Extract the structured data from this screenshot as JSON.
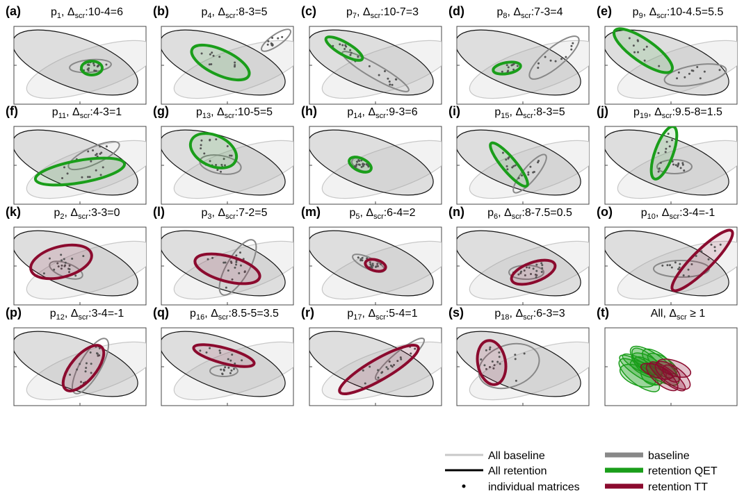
{
  "panels": [
    {
      "letter": "(a)",
      "title": [
        {
          "text": "p"
        },
        {
          "text": "1",
          "sub": true
        },
        {
          "text": ", Δ"
        },
        {
          "text": "scr",
          "sub": true
        },
        {
          "text": ":10-4=6"
        }
      ]
    },
    {
      "letter": "(b)",
      "title": [
        {
          "text": "p"
        },
        {
          "text": "4",
          "sub": true
        },
        {
          "text": ", Δ"
        },
        {
          "text": "scr",
          "sub": true
        },
        {
          "text": ":8-3=5"
        }
      ]
    },
    {
      "letter": "(c)",
      "title": [
        {
          "text": "p"
        },
        {
          "text": "7",
          "sub": true
        },
        {
          "text": ", Δ"
        },
        {
          "text": "scr",
          "sub": true
        },
        {
          "text": ":10-7=3"
        }
      ]
    },
    {
      "letter": "(d)",
      "title": [
        {
          "text": "p"
        },
        {
          "text": "8",
          "sub": true
        },
        {
          "text": ", Δ"
        },
        {
          "text": "scr",
          "sub": true
        },
        {
          "text": ":7-3=4"
        }
      ]
    },
    {
      "letter": "(e)",
      "title": [
        {
          "text": "p"
        },
        {
          "text": "9",
          "sub": true
        },
        {
          "text": ", Δ"
        },
        {
          "text": "scr",
          "sub": true
        },
        {
          "text": ":10-4.5=5.5"
        }
      ]
    },
    {
      "letter": "(f)",
      "title": [
        {
          "text": "p"
        },
        {
          "text": "11",
          "sub": true
        },
        {
          "text": ", Δ"
        },
        {
          "text": "scr",
          "sub": true
        },
        {
          "text": ":4-3=1"
        }
      ]
    },
    {
      "letter": "(g)",
      "title": [
        {
          "text": "p"
        },
        {
          "text": "13",
          "sub": true
        },
        {
          "text": ", Δ"
        },
        {
          "text": "scr",
          "sub": true
        },
        {
          "text": ":10-5=5"
        }
      ]
    },
    {
      "letter": "(h)",
      "title": [
        {
          "text": "p"
        },
        {
          "text": "14",
          "sub": true
        },
        {
          "text": ", Δ"
        },
        {
          "text": "scr",
          "sub": true
        },
        {
          "text": ":9-3=6"
        }
      ]
    },
    {
      "letter": "(i)",
      "title": [
        {
          "text": "p"
        },
        {
          "text": "15",
          "sub": true
        },
        {
          "text": ", Δ"
        },
        {
          "text": "scr",
          "sub": true
        },
        {
          "text": ":8-3=5"
        }
      ]
    },
    {
      "letter": "(j)",
      "title": [
        {
          "text": "p"
        },
        {
          "text": "19",
          "sub": true
        },
        {
          "text": ", Δ"
        },
        {
          "text": "scr",
          "sub": true
        },
        {
          "text": ":9.5-8=1.5"
        }
      ]
    },
    {
      "letter": "(k)",
      "title": [
        {
          "text": "p"
        },
        {
          "text": "2",
          "sub": true
        },
        {
          "text": ", Δ"
        },
        {
          "text": "scr",
          "sub": true
        },
        {
          "text": ":3-3=0"
        }
      ]
    },
    {
      "letter": "(l)",
      "title": [
        {
          "text": "p"
        },
        {
          "text": "3",
          "sub": true
        },
        {
          "text": ", Δ"
        },
        {
          "text": "scr",
          "sub": true
        },
        {
          "text": ":7-2=5"
        }
      ]
    },
    {
      "letter": "(m)",
      "title": [
        {
          "text": "p"
        },
        {
          "text": "5",
          "sub": true
        },
        {
          "text": ", Δ"
        },
        {
          "text": "scr",
          "sub": true
        },
        {
          "text": ":6-4=2"
        }
      ]
    },
    {
      "letter": "(n)",
      "title": [
        {
          "text": "p"
        },
        {
          "text": "6",
          "sub": true
        },
        {
          "text": ", Δ"
        },
        {
          "text": "scr",
          "sub": true
        },
        {
          "text": ":8-7.5=0.5"
        }
      ]
    },
    {
      "letter": "(o)",
      "title": [
        {
          "text": "p"
        },
        {
          "text": "10",
          "sub": true
        },
        {
          "text": ", Δ"
        },
        {
          "text": "scr",
          "sub": true
        },
        {
          "text": ":3-4=-1"
        }
      ]
    },
    {
      "letter": "(p)",
      "title": [
        {
          "text": "p"
        },
        {
          "text": "12",
          "sub": true
        },
        {
          "text": ", Δ"
        },
        {
          "text": "scr",
          "sub": true
        },
        {
          "text": ":3-4=-1"
        }
      ]
    },
    {
      "letter": "(q)",
      "title": [
        {
          "text": "p"
        },
        {
          "text": "16",
          "sub": true
        },
        {
          "text": ", Δ"
        },
        {
          "text": "scr",
          "sub": true
        },
        {
          "text": ":8.5-5=3.5"
        }
      ]
    },
    {
      "letter": "(r)",
      "title": [
        {
          "text": "p"
        },
        {
          "text": "17",
          "sub": true
        },
        {
          "text": ", Δ"
        },
        {
          "text": "scr",
          "sub": true
        },
        {
          "text": ":5-4=1"
        }
      ]
    },
    {
      "letter": "(s)",
      "title": [
        {
          "text": "p"
        },
        {
          "text": "18",
          "sub": true
        },
        {
          "text": ", Δ"
        },
        {
          "text": "scr",
          "sub": true
        },
        {
          "text": ":6-3=3"
        }
      ]
    },
    {
      "letter": "(t)",
      "title": [
        {
          "text": "All, Δ"
        },
        {
          "text": "scr",
          "sub": true
        },
        {
          "text": " ≥ 1"
        }
      ]
    }
  ],
  "legend": [
    "All baseline",
    "All retention",
    "individual matrices",
    "baseline",
    "retention QET",
    "retention TT"
  ]
}
